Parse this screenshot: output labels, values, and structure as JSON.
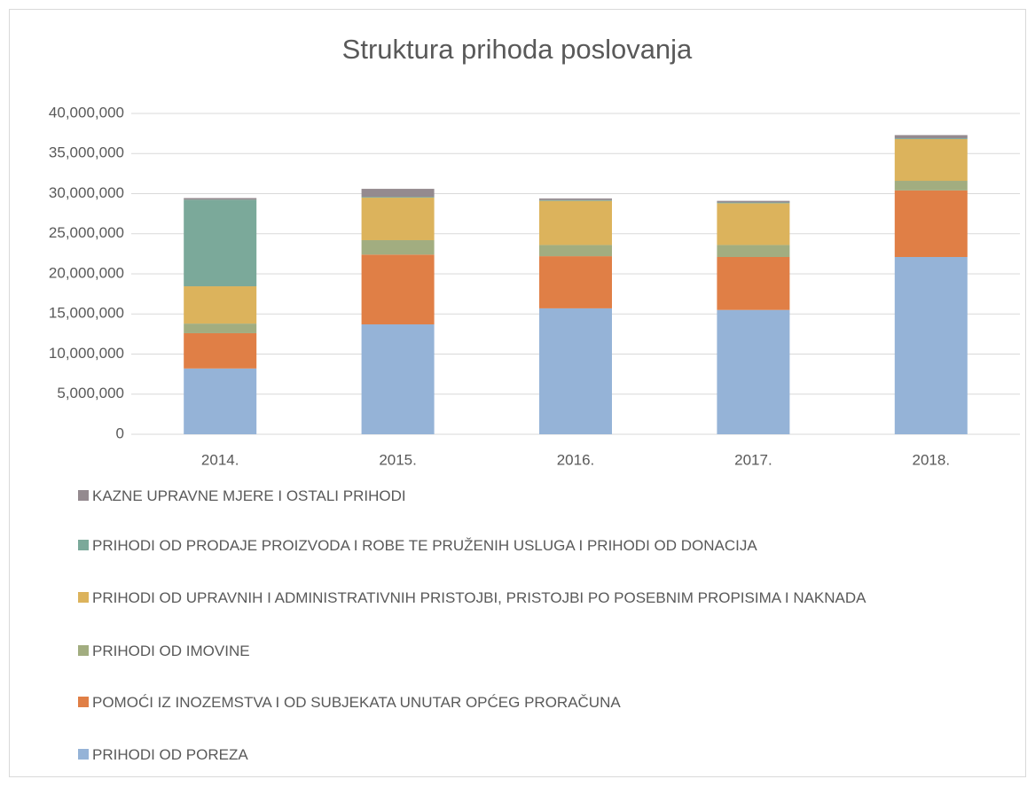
{
  "chart_data": {
    "type": "bar",
    "stacked": true,
    "title": "Struktura prihoda poslovanja",
    "categories": [
      "2014.",
      "2015.",
      "2016.",
      "2017.",
      "2018."
    ],
    "series": [
      {
        "name": "PRIHODI OD POREZA",
        "color": "#95b3d7",
        "values": [
          8200000,
          13700000,
          15700000,
          15500000,
          22100000
        ]
      },
      {
        "name": "POMOĆI IZ INOZEMSTVA I OD SUBJEKATA UNUTAR OPĆEG PRORAČUNA",
        "color": "#e07f46",
        "values": [
          4400000,
          8700000,
          6500000,
          6600000,
          8300000
        ]
      },
      {
        "name": "PRIHODI OD IMOVINE",
        "color": "#a2ad80",
        "values": [
          1200000,
          1800000,
          1400000,
          1500000,
          1200000
        ]
      },
      {
        "name": "PRIHODI OD UPRAVNIH I ADMINISTRATIVNIH PRISTOJBI, PRISTOJBI PO POSEBNIM PROPISIMA I NAKNADA",
        "color": "#dcb35c",
        "values": [
          4650000,
          5300000,
          5500000,
          5200000,
          5200000
        ]
      },
      {
        "name": "PRIHODI OD PRODAJE PROIZVODA I ROBE TE PRUŽENIH USLUGA I PRIHODI OD DONACIJA",
        "color": "#7ba99a",
        "values": [
          10800000,
          100000,
          100000,
          100000,
          100000
        ]
      },
      {
        "name": "KAZNE UPRAVNE MJERE I OSTALI PRIHODI",
        "color": "#948a8f",
        "values": [
          200000,
          1000000,
          200000,
          200000,
          400000
        ]
      }
    ],
    "ylim": [
      0,
      40000000
    ],
    "yticks": [
      0,
      {
        "value": 5000000,
        "label": "5,000,000"
      },
      {
        "value": 10000000,
        "label": "10,000,000"
      },
      {
        "value": 15000000,
        "label": "15,000,000"
      },
      {
        "value": 20000000,
        "label": "20,000,000"
      },
      {
        "value": 25000000,
        "label": "25,000,000"
      },
      {
        "value": 30000000,
        "label": "30,000,000"
      },
      {
        "value": 35000000,
        "label": "35,000,000"
      },
      {
        "value": 40000000,
        "label": "40,000,000"
      }
    ],
    "grid": true,
    "legend": "bottom"
  }
}
